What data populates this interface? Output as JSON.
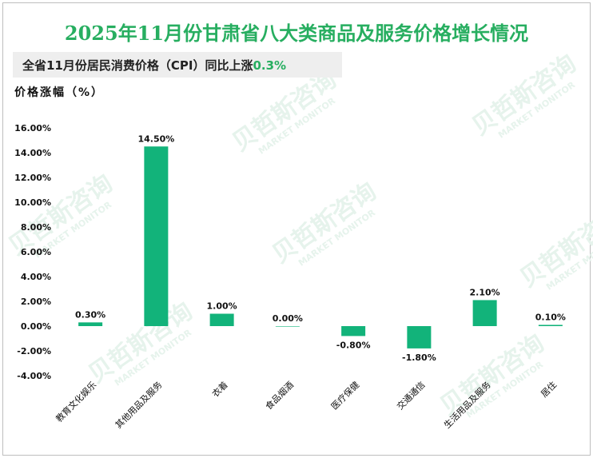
{
  "header": {
    "title": "2025年11月份甘肃省八大类商品及服务价格增长情况",
    "subtitle_prefix": "全省11月份居民消费价格（CPI）同比上涨",
    "subtitle_value": "0.3%"
  },
  "watermark": {
    "text": "贝哲斯咨询",
    "subtext": "MARKET MONITOR"
  },
  "colors": {
    "bar": "#12b37a",
    "title": "#27ae60",
    "accent": "#27ae60"
  },
  "chart_data": {
    "type": "bar",
    "ylabel": "价格涨幅（%）",
    "ylim": [
      -4,
      16
    ],
    "yticks": [
      16,
      14,
      12,
      10,
      8,
      6,
      4,
      2,
      0,
      -2,
      -4
    ],
    "ytick_labels": [
      "16.00%",
      "14.00%",
      "12.00%",
      "10.00%",
      "8.00%",
      "6.00%",
      "4.00%",
      "2.00%",
      "0.00%",
      "-2.00%",
      "-4.00%"
    ],
    "categories": [
      "教育文化娱乐",
      "其他用品及服务",
      "衣着",
      "食品烟酒",
      "医疗保健",
      "交通通信",
      "生活用品及服务",
      "居住"
    ],
    "values": [
      0.3,
      14.5,
      1.0,
      0.0,
      -0.8,
      -1.8,
      2.1,
      0.1
    ],
    "data_labels": [
      "0.30%",
      "14.50%",
      "1.00%",
      "0.00%",
      "-0.80%",
      "-1.80%",
      "2.10%",
      "0.10%"
    ],
    "grid": false,
    "legend": "none"
  }
}
